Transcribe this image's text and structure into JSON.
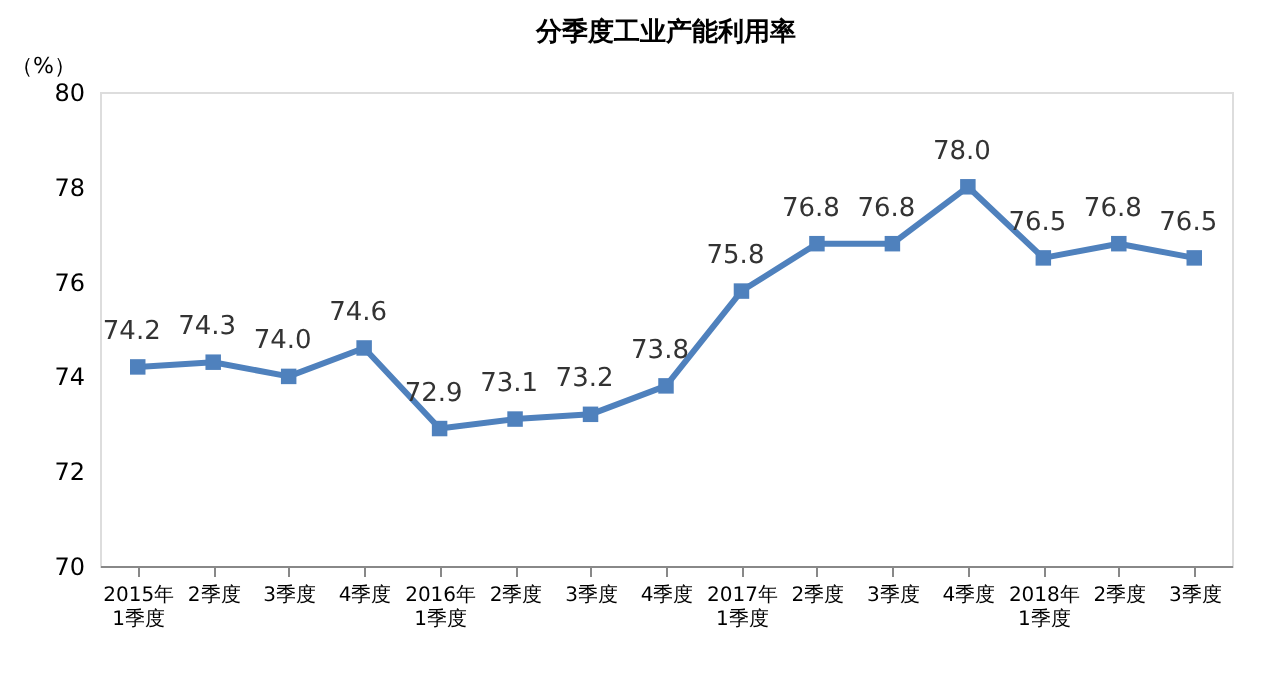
{
  "chart_data": {
    "type": "line",
    "title": "分季度工业产能利用率",
    "ylabel": "（%）",
    "categories": [
      "2015年\n1季度",
      "2季度",
      "3季度",
      "4季度",
      "2016年\n1季度",
      "2季度",
      "3季度",
      "4季度",
      "2017年\n1季度",
      "2季度",
      "3季度",
      "4季度",
      "2018年\n1季度",
      "2季度",
      "3季度"
    ],
    "series": [
      {
        "color": "#4f81bd",
        "values": [
          74.2,
          74.3,
          74.0,
          74.6,
          72.9,
          73.1,
          73.2,
          73.8,
          75.8,
          76.8,
          76.8,
          78.0,
          76.5,
          76.8,
          76.5
        ],
        "value_labels": [
          "74.2",
          "74.3",
          "74.0",
          "74.6",
          "72.9",
          "73.1",
          "73.2",
          "73.8",
          "75.8",
          "76.8",
          "76.8",
          "78.0",
          "76.5",
          "76.8",
          "76.5"
        ]
      }
    ],
    "ylim": [
      70,
      80
    ],
    "yticks": [
      70,
      72,
      74,
      76,
      78,
      80
    ],
    "grid": false,
    "legend": false,
    "marker": "square",
    "line_style": "solid"
  }
}
